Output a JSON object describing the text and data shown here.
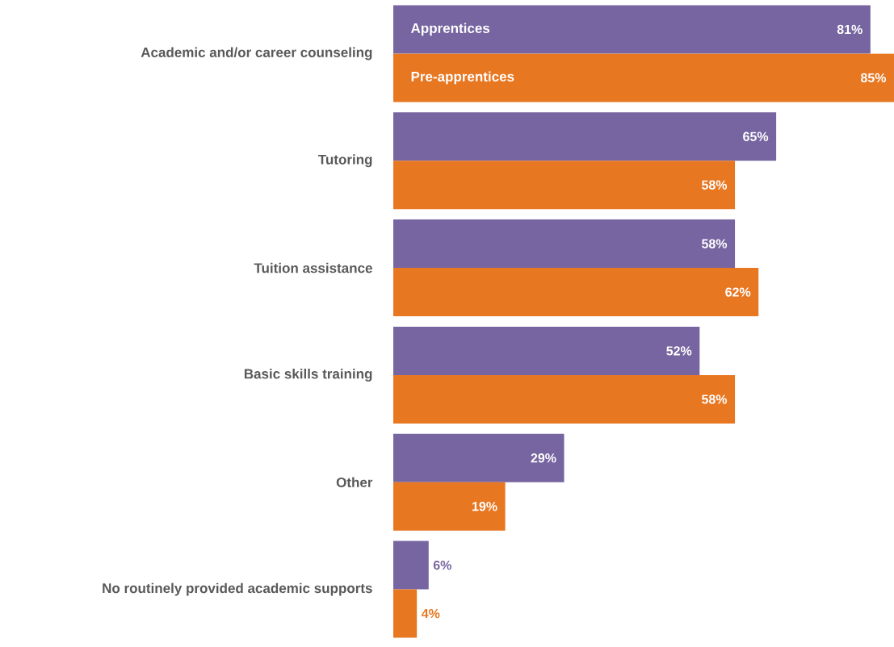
{
  "chart_data": {
    "type": "bar",
    "orientation": "horizontal",
    "categories": [
      "Academic and/or career counseling",
      "Tutoring",
      "Tuition assistance",
      "Basic skills training",
      "Other",
      "No routinely provided academic supports"
    ],
    "series": [
      {
        "name": "Apprentices",
        "color": "#7665a0",
        "values": [
          81,
          65,
          58,
          52,
          29,
          6
        ],
        "value_labels": [
          "81%",
          "65%",
          "58%",
          "52%",
          "29%",
          "6%"
        ]
      },
      {
        "name": "Pre-apprentices",
        "color": "#e87722",
        "values": [
          85,
          58,
          62,
          58,
          19,
          4
        ],
        "value_labels": [
          "85%",
          "58%",
          "62%",
          "58%",
          "19%",
          "4%"
        ]
      }
    ]
  }
}
